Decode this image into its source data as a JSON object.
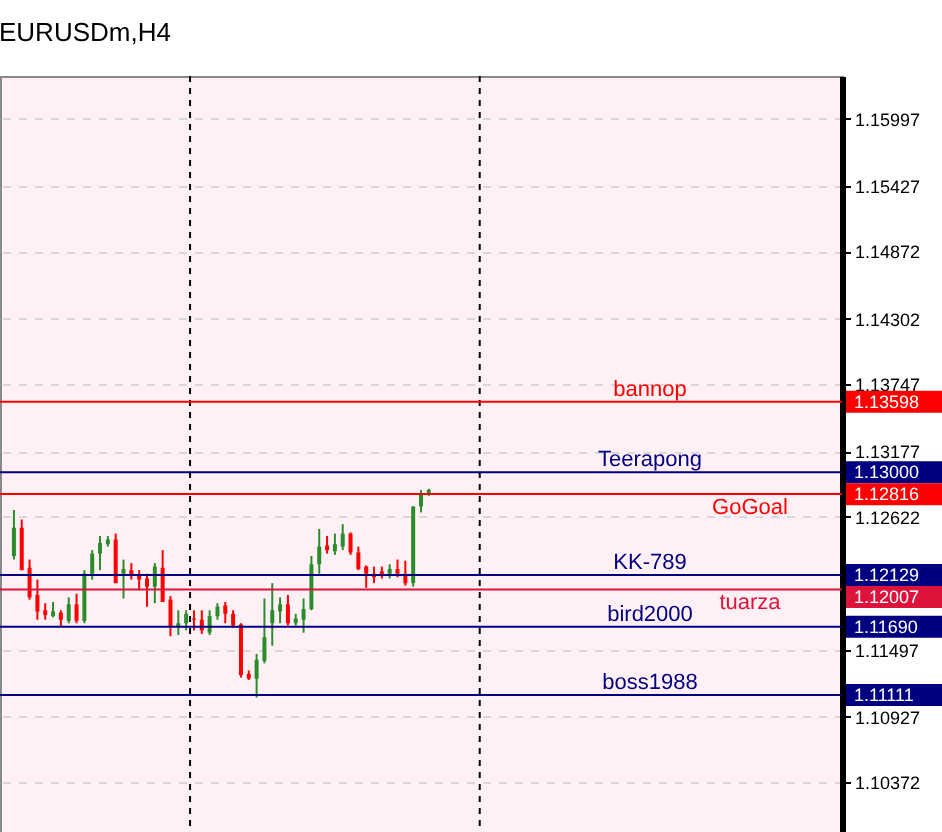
{
  "chart_data": {
    "type": "candlestick",
    "title": "EURUSDm,H4",
    "categories": [
      null,
      null,
      null,
      null,
      null,
      null,
      null,
      null,
      null,
      null,
      null,
      null,
      null,
      null,
      null,
      null,
      null,
      null,
      null,
      null,
      null,
      null,
      null,
      null,
      null,
      null,
      null,
      null,
      null,
      null,
      null,
      null,
      null,
      null,
      null,
      null,
      null,
      null,
      null,
      null,
      null,
      null,
      null,
      null,
      null,
      null,
      null,
      null,
      null,
      null,
      null,
      null,
      null,
      null,
      null,
      null,
      null,
      null,
      null,
      null,
      null,
      null,
      null,
      null,
      null,
      null,
      null,
      null,
      null,
      null,
      null,
      null,
      null,
      null,
      null,
      null,
      null,
      null,
      null,
      null,
      null,
      null,
      null,
      null,
      null,
      null,
      null,
      null,
      null,
      null,
      null,
      null,
      null,
      null,
      null,
      null,
      null,
      null,
      null,
      null,
      null,
      null,
      null,
      null,
      null
    ],
    "ohlc": [
      [
        1.1229,
        1.1268,
        1.1226,
        1.1253
      ],
      [
        1.1253,
        1.126,
        1.1217,
        1.1217
      ],
      [
        1.1219,
        1.1226,
        1.1192,
        1.1194
      ],
      [
        1.1196,
        1.1209,
        1.1175,
        1.1182
      ],
      [
        1.1183,
        1.1189,
        1.1175,
        1.1179
      ],
      [
        1.1178,
        1.119,
        1.1177,
        1.1182
      ],
      [
        1.1181,
        1.1183,
        1.1169,
        1.1175
      ],
      [
        1.1174,
        1.1194,
        1.1172,
        1.1188
      ],
      [
        1.1188,
        1.1197,
        1.1172,
        1.1174
      ],
      [
        1.1174,
        1.1217,
        1.1172,
        1.1214
      ],
      [
        1.1214,
        1.1234,
        1.1209,
        1.1231
      ],
      [
        1.1231,
        1.1246,
        1.1217,
        1.124
      ],
      [
        1.1239,
        1.1246,
        1.1237,
        1.1243
      ],
      [
        1.1243,
        1.1248,
        1.1206,
        1.1206
      ],
      [
        1.1214,
        1.1226,
        1.1193,
        1.1218
      ],
      [
        1.1217,
        1.1223,
        1.1209,
        1.1212
      ],
      [
        1.1213,
        1.1217,
        1.12,
        1.1209
      ],
      [
        1.121,
        1.1214,
        1.1186,
        1.1203
      ],
      [
        1.1203,
        1.1223,
        1.1189,
        1.122
      ],
      [
        1.1219,
        1.1234,
        1.119,
        1.119
      ],
      [
        1.1192,
        1.1195,
        1.1161,
        1.1169
      ],
      [
        1.1169,
        1.1183,
        1.1162,
        1.1172
      ],
      [
        1.1172,
        1.1183,
        1.1166,
        1.118
      ],
      [
        1.1176,
        1.1183,
        1.1166,
        1.1175
      ],
      [
        1.1175,
        1.1183,
        1.1163,
        1.1166
      ],
      [
        1.1164,
        1.1183,
        1.1162,
        1.1178
      ],
      [
        1.1178,
        1.1189,
        1.1175,
        1.1186
      ],
      [
        1.1187,
        1.119,
        1.1172,
        1.118
      ],
      [
        1.118,
        1.1183,
        1.1168,
        1.117
      ],
      [
        1.1171,
        1.1172,
        1.1126,
        1.1128
      ],
      [
        1.1129,
        1.1132,
        1.1124,
        1.1125
      ],
      [
        1.1125,
        1.1146,
        1.1109,
        1.1141
      ],
      [
        1.114,
        1.1193,
        1.1138,
        1.116
      ],
      [
        1.1172,
        1.1206,
        1.1153,
        1.1183
      ],
      [
        1.1182,
        1.1194,
        1.1172,
        1.1188
      ],
      [
        1.1188,
        1.1196,
        1.117,
        1.1172
      ],
      [
        1.1172,
        1.118,
        1.117,
        1.1176
      ],
      [
        1.1175,
        1.1193,
        1.1164,
        1.1184
      ],
      [
        1.1184,
        1.1229,
        1.1183,
        1.1222
      ],
      [
        1.1222,
        1.1252,
        1.1214,
        1.1237
      ],
      [
        1.1238,
        1.1246,
        1.1231,
        1.1234
      ],
      [
        1.1233,
        1.1248,
        1.123,
        1.1239
      ],
      [
        1.1237,
        1.1256,
        1.1234,
        1.1248
      ],
      [
        1.1248,
        1.1249,
        1.123,
        1.1232
      ],
      [
        1.1232,
        1.1237,
        1.1217,
        1.1218
      ],
      [
        1.122,
        1.1221,
        1.1202,
        1.1214
      ],
      [
        1.1214,
        1.122,
        1.1206,
        1.1211
      ],
      [
        1.1216,
        1.122,
        1.121,
        1.1213
      ],
      [
        1.1214,
        1.1222,
        1.121,
        1.1218
      ],
      [
        1.1218,
        1.1226,
        1.1211,
        1.1214
      ],
      [
        1.1214,
        1.1225,
        1.1204,
        1.1206
      ],
      [
        1.1206,
        1.1271,
        1.1203,
        1.1271
      ],
      [
        1.1271,
        1.1285,
        1.1266,
        1.1281
      ],
      [
        1.1282,
        1.1286,
        1.128,
        1.1285
      ],
      null,
      null,
      null,
      null,
      null,
      null,
      null,
      null,
      null,
      null,
      null,
      null,
      null,
      null,
      null,
      null,
      null,
      null,
      null,
      null,
      null,
      null,
      null,
      null,
      null,
      null,
      null,
      null,
      null,
      null,
      null,
      null,
      null,
      null,
      null,
      null,
      null,
      null,
      null,
      null,
      null,
      null,
      null,
      null,
      null,
      null,
      null,
      null,
      null,
      null,
      null
    ],
    "colors": [
      "#2a8c2a",
      "#ff0000",
      "#ff0000",
      "#ff0000",
      "#ff0000",
      "#2a8c2a",
      "#ff0000",
      "#2a8c2a",
      "#ff0000",
      "#2a8c2a",
      "#2a8c2a",
      "#2a8c2a",
      "#2a8c2a",
      "#ff0000",
      "#2a8c2a",
      "#ff0000",
      "#ff0000",
      "#ff0000",
      "#2a8c2a",
      "#ff0000",
      "#ff0000",
      "#2a8c2a",
      "#2a8c2a",
      "#ff0000",
      "#ff0000",
      "#2a8c2a",
      "#2a8c2a",
      "#ff0000",
      "#ff0000",
      "#ff0000",
      "#ff0000",
      "#2a8c2a",
      "#2a8c2a",
      "#2a8c2a",
      "#2a8c2a",
      "#ff0000",
      "#2a8c2a",
      "#2a8c2a",
      "#2a8c2a",
      "#2a8c2a",
      "#ff0000",
      "#2a8c2a",
      "#2a8c2a",
      "#ff0000",
      "#ff0000",
      "#ff0000",
      "#ff0000",
      "#ff0000",
      "#2a8c2a",
      "#ff0000",
      "#ff0000",
      "#2a8c2a",
      "#2a8c2a",
      "#2a8c2a",
      null,
      null,
      null,
      null,
      null,
      null,
      null,
      null,
      null,
      null,
      null,
      null,
      null,
      null,
      null,
      null,
      null,
      null,
      null,
      null,
      null,
      null,
      null,
      null,
      null,
      null,
      null,
      null,
      null,
      null,
      null,
      null,
      null,
      null,
      null,
      null,
      null,
      null,
      null,
      null,
      null,
      null,
      null,
      null,
      null,
      null,
      null,
      null,
      null,
      null,
      null
    ],
    "ylim": [
      1.0995,
      1.1636
    ],
    "yticks": [
      1.10372,
      1.10927,
      1.11497,
      1.12622,
      1.13177,
      1.13747,
      1.14302,
      1.14872,
      1.15427,
      1.15997
    ],
    "ref_lines": [
      {
        "axis": "y",
        "value": 1.13598,
        "label": "bannop",
        "color": "#ff0000"
      },
      {
        "axis": "y",
        "value": 1.13,
        "label": "Teerapong",
        "color": "#000080"
      },
      {
        "axis": "y",
        "value": 1.12816,
        "label": "GoGoal",
        "color": "#ff0000"
      },
      {
        "axis": "y",
        "value": 1.12129,
        "label": "KK-789",
        "color": "#000080"
      },
      {
        "axis": "y",
        "value": 1.12007,
        "label": "tuarza",
        "color": "#dc143c"
      },
      {
        "axis": "y",
        "value": 1.1169,
        "label": "bird2000",
        "color": "#000080"
      },
      {
        "axis": "y",
        "value": 1.11111,
        "label": "boss1988",
        "color": "#000080"
      }
    ],
    "annotations": [
      "1.13598",
      "1.13000",
      "1.12816",
      "1.12129",
      "1.12007",
      "1.11690",
      "1.11111"
    ],
    "grid": "y",
    "legend": false,
    "tick_labels": "y"
  }
}
